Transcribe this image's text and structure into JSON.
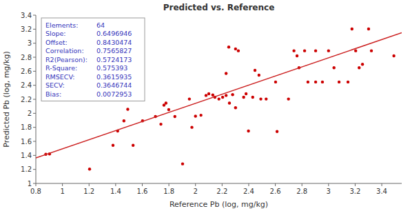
{
  "chart_data": {
    "type": "scatter",
    "title": "Predicted vs. Reference",
    "x_label": "Reference Pb (log, mg/kg)",
    "y_label": "Predicted Pb (log, mg/kg)",
    "xlim": [
      0.8,
      3.55
    ],
    "ylim": [
      1.0,
      3.4
    ],
    "xticks": [
      0.8,
      1,
      1.2,
      1.4,
      1.6,
      1.8,
      2,
      2.2,
      2.4,
      2.6,
      2.8,
      3,
      3.2,
      3.4
    ],
    "yticks": [
      1,
      1.2,
      1.4,
      1.6,
      1.8,
      2,
      2.2,
      2.4,
      2.6,
      2.8,
      3,
      3.2,
      3.4
    ],
    "grid": false,
    "series": [
      {
        "type": "scatter",
        "color": "#cc0000",
        "marker": "circle",
        "x": [
          0.875,
          0.903,
          1.204,
          1.38,
          1.415,
          1.462,
          1.491,
          1.531,
          1.602,
          1.699,
          1.74,
          1.763,
          1.778,
          1.799,
          1.845,
          1.903,
          1.954,
          1.973,
          2.0,
          2.041,
          2.079,
          2.1,
          2.13,
          2.146,
          2.176,
          2.204,
          2.23,
          2.23,
          2.25,
          2.255,
          2.279,
          2.301,
          2.301,
          2.322,
          2.362,
          2.38,
          2.398,
          2.43,
          2.447,
          2.477,
          2.491,
          2.531,
          2.602,
          2.613,
          2.699,
          2.74,
          2.763,
          2.778,
          2.82,
          2.845,
          2.903,
          2.903,
          2.954,
          3.0,
          3.041,
          3.079,
          3.146,
          3.176,
          3.204,
          3.23,
          3.255,
          3.301,
          3.322,
          3.491
        ],
        "values": [
          1.415,
          1.42,
          1.204,
          1.544,
          1.748,
          1.893,
          2.057,
          1.544,
          1.893,
          1.954,
          1.845,
          2.117,
          2.146,
          2.053,
          1.954,
          1.279,
          2.204,
          1.8,
          1.959,
          1.973,
          2.255,
          2.279,
          2.262,
          2.23,
          2.204,
          2.23,
          2.569,
          2.255,
          2.945,
          2.146,
          2.267,
          2.919,
          2.079,
          2.892,
          2.23,
          2.279,
          1.748,
          2.23,
          2.613,
          2.544,
          2.204,
          2.204,
          2.447,
          1.74,
          2.204,
          2.892,
          2.82,
          2.65,
          2.892,
          2.447,
          2.892,
          2.447,
          2.447,
          2.892,
          2.65,
          2.447,
          2.447,
          3.204,
          2.892,
          2.65,
          2.699,
          3.204,
          2.892,
          2.82
        ]
      },
      {
        "type": "line",
        "color": "#cc2222",
        "line_style": "solid",
        "x": [
          0.8,
          3.55
        ],
        "values": [
          1.36280308,
          3.14946323
        ]
      }
    ],
    "annotations": [
      {
        "label": "Elements:",
        "value": 64
      },
      {
        "label": "Slope:",
        "value": 0.6496946
      },
      {
        "label": "Offset:",
        "value": 0.8430474
      },
      {
        "label": "Correlation:",
        "value": 0.7565827
      },
      {
        "label": "R2(Pearson):",
        "value": 0.5724173
      },
      {
        "label": "R-Square:",
        "value": 0.575393
      },
      {
        "label": "RMSECV:",
        "value": 0.3615935
      },
      {
        "label": "SECV:",
        "value": 0.3646744
      },
      {
        "label": "Bias:",
        "value": 0.0072953
      }
    ]
  }
}
